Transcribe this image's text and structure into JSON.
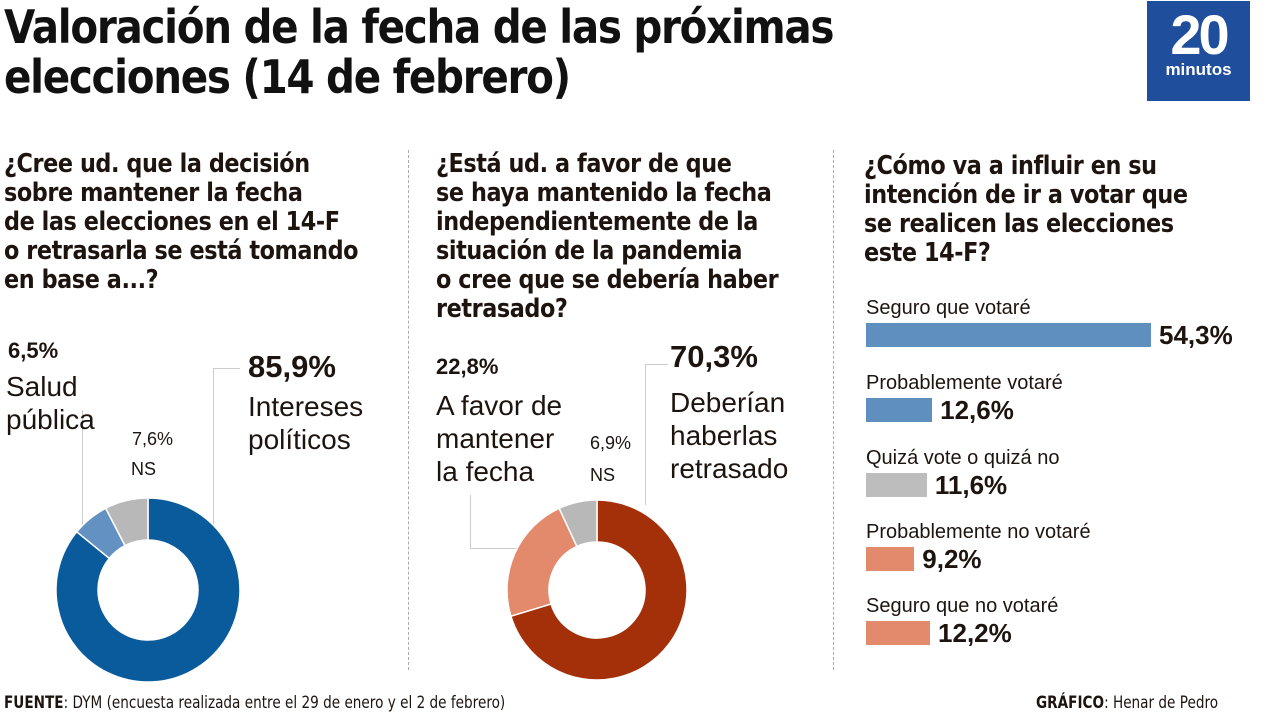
{
  "header": {
    "title": "Valoración de la fecha de las próximas\nelecciones (14 de febrero)",
    "logo": {
      "number": "20",
      "text": "minutos",
      "color": "#1f4e9c"
    }
  },
  "chart_data": [
    {
      "type": "pie",
      "style": "donut",
      "question": "¿Cree ud. que la decisión\nsobre mantener la fecha\nde las elecciones en el 14-F\no retrasarla se está tomando\nen base a...?",
      "slices": [
        {
          "label": "Intereses políticos",
          "value": 85.9,
          "display": "85,9%",
          "color": "#095b9c"
        },
        {
          "label": "Salud pública",
          "value": 6.5,
          "display": "6,5%",
          "color": "#6391c2"
        },
        {
          "label": "NS",
          "value": 7.6,
          "display": "7,6%",
          "color": "#b8b8b8"
        }
      ]
    },
    {
      "type": "pie",
      "style": "donut",
      "question": "¿Está ud. a favor de que\nse haya mantenido la fecha\nindependientemente de la\nsituación de la pandemia\no cree que se debería haber\nretrasado?",
      "slices": [
        {
          "label": "Deberían haberlas retrasado",
          "value": 70.3,
          "display": "70,3%",
          "color": "#a4300a"
        },
        {
          "label": "A favor de mantener la fecha",
          "value": 22.8,
          "display": "22,8%",
          "color": "#e48a6c"
        },
        {
          "label": "NS",
          "value": 6.9,
          "display": "6,9%",
          "color": "#b8b8b8"
        }
      ]
    },
    {
      "type": "bar",
      "orientation": "horizontal",
      "question": "¿Cómo va a influir en su\nintención de ir a votar que\nse realicen las elecciones\neste 14-F?",
      "categories": [
        "Seguro que votaré",
        "Probablemente votaré",
        "Quizá vote o quizá no",
        "Probablemente no votaré",
        "Seguro que no votaré"
      ],
      "values": [
        54.3,
        12.6,
        11.6,
        9.2,
        12.2
      ],
      "displays": [
        "54,3%",
        "12,6%",
        "11,6%",
        "9,2%",
        "12,2%"
      ],
      "colors": [
        "#5f8fbf",
        "#5f8fbf",
        "#bdbdbd",
        "#e48a6c",
        "#e48a6c"
      ],
      "xlim": [
        0,
        54.3
      ]
    }
  ],
  "labels": {
    "c1_main_pct": "85,9%",
    "c1_main_txt": "Intereses\npolíticos",
    "c1_sec_pct": "6,5%",
    "c1_sec_txt": "Salud\npública",
    "c1_ns_pct": "7,6%",
    "c1_ns_txt": "NS",
    "c2_main_pct": "70,3%",
    "c2_main_txt": "Deberían\nhaberlas\nretrasado",
    "c2_sec_pct": "22,8%",
    "c2_sec_txt": "A favor de\nmantener\nla fecha",
    "c2_ns_pct": "6,9%",
    "c2_ns_txt": "NS"
  },
  "footer": {
    "source_label": "FUENTE",
    "source_text": ": DYM (encuesta realizada entre el 29 de enero y el 2 de febrero)",
    "credit_label": "GRÁFICO",
    "credit_text": ": Henar de Pedro"
  }
}
